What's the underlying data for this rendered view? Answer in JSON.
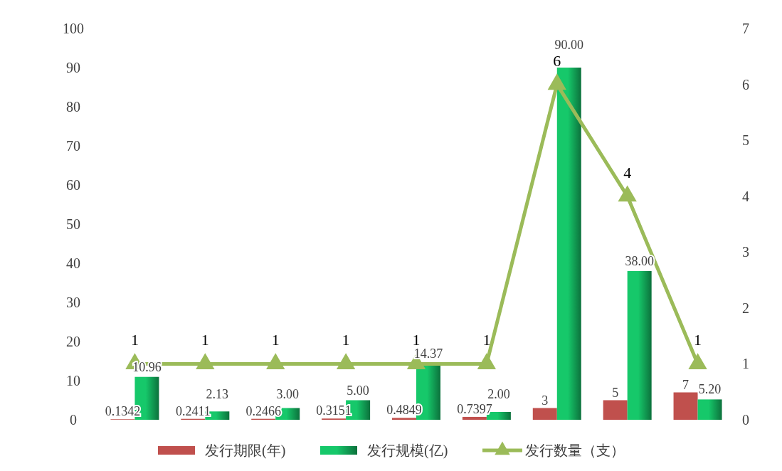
{
  "chart_data": {
    "type": "bar",
    "categories": [
      null,
      null,
      null,
      null,
      null,
      null,
      null,
      null,
      null
    ],
    "series": [
      {
        "name": "发行期限(年)",
        "color": "#c0504d",
        "values": [
          0.1342,
          0.2411,
          0.2466,
          0.3151,
          0.4849,
          0.7397,
          3,
          5,
          7
        ],
        "value_labels": [
          "0.1342",
          "0.2411",
          "0.2466",
          "0.3151",
          "0.4849",
          "0.7397",
          "3",
          "5",
          "7"
        ]
      },
      {
        "name": "发行规模(亿)",
        "color": "#16c86a",
        "values": [
          10.96,
          2.13,
          3.0,
          5.0,
          14.37,
          2.0,
          90.0,
          38.0,
          5.2
        ],
        "value_labels": [
          "10.96",
          "2.13",
          "3.00",
          "5.00",
          "14.37",
          "2.00",
          "90.00",
          "38.00",
          "5.20"
        ]
      },
      {
        "name": "发行数量（支）",
        "type": "line",
        "axis": "y2",
        "color": "#9bbb59",
        "marker": "triangle",
        "values": [
          1,
          1,
          1,
          1,
          1,
          1,
          6,
          4,
          1
        ],
        "value_labels": [
          "1",
          "1",
          "1",
          "1",
          "1",
          "1",
          "6",
          "4",
          "1"
        ]
      }
    ],
    "ylim": [
      0,
      100
    ],
    "yticks": [
      0,
      10,
      20,
      30,
      40,
      50,
      60,
      70,
      80,
      90,
      100
    ],
    "y2lim": [
      0,
      7
    ],
    "y2ticks": [
      0,
      1,
      2,
      3,
      4,
      5,
      6,
      7
    ],
    "grid": false,
    "legend": "bottom"
  }
}
